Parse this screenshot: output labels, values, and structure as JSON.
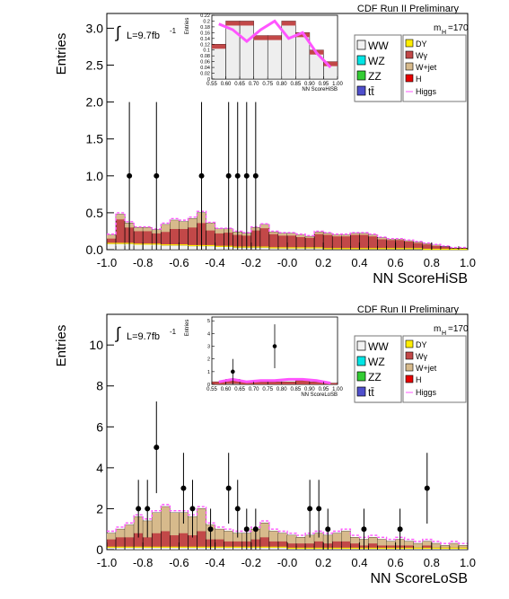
{
  "colors": {
    "WW": "#f2f2f2",
    "WZ": "#00e5e5",
    "ZZ": "#33cc33",
    "tt": "#4f4fcc",
    "DY": "#ffee00",
    "Wg": "#c24848",
    "Wjet": "#d7ba8c",
    "H": "#e60000",
    "Higgs": "#ff55ff",
    "points": "#000000"
  },
  "chart_data": [
    {
      "type": "bar",
      "title": "CDF Run II Preliminary",
      "xlabel": "NN ScoreHiSB",
      "ylabel": "Entries",
      "lumi_text": "L=9.7fb",
      "lumi_exp": "-1",
      "mass_label": "m",
      "mass_sub": "H",
      "mass_val": "=170",
      "xlim": [
        -1.0,
        1.0
      ],
      "ylim": [
        0,
        3.2
      ],
      "xticks": [
        "-1.0",
        "-0.8",
        "-0.6",
        "-0.4",
        "-0.2",
        "-0.0",
        "0.2",
        "0.4",
        "0.6",
        "0.8",
        "1.0"
      ],
      "yticks": [
        "0.0",
        "0.5",
        "1.0",
        "1.5",
        "2.0",
        "2.5",
        "3.0"
      ],
      "legend": [
        "WW",
        "WZ",
        "ZZ",
        "tt̄",
        "DY",
        "Wγ",
        "W+jet",
        "H",
        "Higgs"
      ],
      "bin_width": 0.05,
      "stack_total": [
        0.2,
        0.48,
        0.36,
        0.3,
        0.3,
        0.27,
        0.34,
        0.4,
        0.38,
        0.42,
        0.5,
        0.36,
        0.28,
        0.28,
        0.24,
        0.22,
        0.3,
        0.34,
        0.24,
        0.22,
        0.22,
        0.2,
        0.18,
        0.24,
        0.22,
        0.2,
        0.2,
        0.22,
        0.22,
        0.2,
        0.16,
        0.14,
        0.14,
        0.12,
        0.1,
        0.08,
        0.06,
        0.04,
        0.02,
        0.02
      ],
      "wjet": [
        0.05,
        0.07,
        0.06,
        0.05,
        0.05,
        0.05,
        0.1,
        0.12,
        0.1,
        0.12,
        0.14,
        0.1,
        0.06,
        0.05,
        0.04,
        0.03,
        0.04,
        0.05,
        0.03,
        0.03,
        0.03,
        0.03,
        0.02,
        0.03,
        0.02,
        0.02,
        0.02,
        0.02,
        0.02,
        0.02,
        0.02,
        0.01,
        0.01,
        0.01,
        0.01,
        0.01,
        0.01,
        0.0,
        0.0,
        0.0
      ],
      "ww": [
        0.08,
        0.08,
        0.08,
        0.07,
        0.07,
        0.07,
        0.06,
        0.06,
        0.06,
        0.05,
        0.05,
        0.05,
        0.04,
        0.04,
        0.03,
        0.03,
        0.03,
        0.03,
        0.02,
        0.02,
        0.02,
        0.02,
        0.02,
        0.02,
        0.01,
        0.01,
        0.01,
        0.01,
        0.01,
        0.01,
        0.01,
        0.01,
        0.01,
        0.01,
        0.01,
        0.0,
        0.0,
        0.0,
        0.0,
        0.0
      ],
      "higgs": [
        0.21,
        0.5,
        0.38,
        0.31,
        0.31,
        0.28,
        0.36,
        0.42,
        0.4,
        0.44,
        0.52,
        0.37,
        0.29,
        0.29,
        0.25,
        0.23,
        0.31,
        0.35,
        0.25,
        0.23,
        0.23,
        0.21,
        0.19,
        0.25,
        0.23,
        0.21,
        0.21,
        0.23,
        0.23,
        0.21,
        0.17,
        0.15,
        0.15,
        0.13,
        0.11,
        0.09,
        0.07,
        0.05,
        0.03,
        0.03
      ],
      "data_points": [
        {
          "x": -0.875,
          "y": 1,
          "err": 1.0
        },
        {
          "x": -0.725,
          "y": 1,
          "err": 1.0
        },
        {
          "x": -0.475,
          "y": 1,
          "err": 1.0
        },
        {
          "x": -0.325,
          "y": 1,
          "err": 1.0
        },
        {
          "x": -0.275,
          "y": 1,
          "err": 1.0
        },
        {
          "x": -0.225,
          "y": 1,
          "err": 1.0
        },
        {
          "x": -0.175,
          "y": 1,
          "err": 1.0
        }
      ],
      "inset": {
        "xlabel": "NN ScoreHiSB",
        "ylabel": "Entries",
        "xlim": [
          0.55,
          1.0
        ],
        "ylim": [
          0,
          0.22
        ],
        "xticks": [
          "0.55",
          "0.60",
          "0.65",
          "0.70",
          "0.75",
          "0.80",
          "0.85",
          "0.90",
          "0.95",
          "1.00"
        ],
        "yticks": [
          "0",
          "0.02",
          "0.04",
          "0.06",
          "0.08",
          "0.1",
          "0.12",
          "0.14",
          "0.16",
          "0.18",
          "0.2",
          "0.22"
        ],
        "stack_total": [
          0.12,
          0.2,
          0.2,
          0.15,
          0.15,
          0.2,
          0.16,
          0.1,
          0.06
        ],
        "higgs": [
          0.19,
          0.17,
          0.13,
          0.17,
          0.2,
          0.14,
          0.16,
          0.09,
          0.04
        ],
        "data_points": []
      }
    },
    {
      "type": "bar",
      "title": "CDF Run II Preliminary",
      "xlabel": "NN ScoreLoSB",
      "ylabel": "Entries",
      "lumi_text": "L=9.7fb",
      "lumi_exp": "-1",
      "mass_label": "m",
      "mass_sub": "H",
      "mass_val": "=170",
      "xlim": [
        -1.0,
        1.0
      ],
      "ylim": [
        0,
        11.5
      ],
      "xticks": [
        "-1.0",
        "-0.8",
        "-0.6",
        "-0.4",
        "-0.2",
        "-0.0",
        "0.2",
        "0.4",
        "0.6",
        "0.8",
        "1.0"
      ],
      "yticks": [
        "0",
        "2",
        "4",
        "6",
        "8",
        "10"
      ],
      "legend": [
        "WW",
        "WZ",
        "ZZ",
        "tt̄",
        "DY",
        "Wγ",
        "W+jet",
        "H",
        "Higgs"
      ],
      "bin_width": 0.05,
      "stack_total": [
        0.8,
        1.0,
        1.2,
        1.6,
        1.4,
        1.8,
        2.1,
        1.8,
        1.8,
        1.6,
        2.0,
        1.2,
        1.0,
        0.9,
        0.8,
        0.8,
        1.0,
        1.3,
        0.9,
        0.8,
        0.7,
        0.6,
        0.7,
        0.8,
        0.7,
        0.8,
        0.9,
        0.6,
        0.5,
        0.6,
        0.5,
        0.4,
        0.5,
        0.4,
        0.3,
        0.4,
        0.3,
        0.2,
        0.3,
        0.2
      ],
      "wjet": [
        0.3,
        0.4,
        0.6,
        0.8,
        0.8,
        1.0,
        1.2,
        1.1,
        1.0,
        0.9,
        1.1,
        0.7,
        0.5,
        0.5,
        0.4,
        0.4,
        0.5,
        0.7,
        0.5,
        0.4,
        0.4,
        0.3,
        0.4,
        0.4,
        0.4,
        0.4,
        0.5,
        0.3,
        0.3,
        0.3,
        0.3,
        0.2,
        0.3,
        0.2,
        0.2,
        0.2,
        0.2,
        0.1,
        0.2,
        0.1
      ],
      "ww": [
        0.1,
        0.1,
        0.1,
        0.1,
        0.1,
        0.1,
        0.1,
        0.1,
        0.1,
        0.1,
        0.1,
        0.1,
        0.1,
        0.1,
        0.1,
        0.1,
        0.1,
        0.1,
        0.1,
        0.1,
        0.05,
        0.05,
        0.05,
        0.05,
        0.05,
        0.05,
        0.05,
        0.05,
        0.05,
        0.05,
        0.05,
        0.05,
        0.05,
        0.05,
        0.05,
        0.05,
        0.05,
        0.05,
        0.05,
        0.05
      ],
      "higgs": [
        0.9,
        1.1,
        1.3,
        1.7,
        1.5,
        1.9,
        2.2,
        1.9,
        1.9,
        1.7,
        2.1,
        1.3,
        1.1,
        1.0,
        0.9,
        0.9,
        1.1,
        1.4,
        1.0,
        0.9,
        0.8,
        0.7,
        0.8,
        0.9,
        0.8,
        0.9,
        1.0,
        0.7,
        0.6,
        0.7,
        0.6,
        0.5,
        0.6,
        0.5,
        0.4,
        0.5,
        0.4,
        0.3,
        0.4,
        0.3
      ],
      "data_points": [
        {
          "x": -0.825,
          "y": 2,
          "err": 1.41
        },
        {
          "x": -0.775,
          "y": 2,
          "err": 1.41
        },
        {
          "x": -0.725,
          "y": 5,
          "err": 2.24
        },
        {
          "x": -0.575,
          "y": 3,
          "err": 1.73
        },
        {
          "x": -0.525,
          "y": 2,
          "err": 1.41
        },
        {
          "x": -0.425,
          "y": 1,
          "err": 1.0
        },
        {
          "x": -0.325,
          "y": 3,
          "err": 1.73
        },
        {
          "x": -0.275,
          "y": 2,
          "err": 1.41
        },
        {
          "x": -0.225,
          "y": 1,
          "err": 1.0
        },
        {
          "x": -0.175,
          "y": 1,
          "err": 1.0
        },
        {
          "x": 0.125,
          "y": 2,
          "err": 1.41
        },
        {
          "x": 0.175,
          "y": 2,
          "err": 1.41
        },
        {
          "x": 0.225,
          "y": 1,
          "err": 1.0
        },
        {
          "x": 0.425,
          "y": 1,
          "err": 1.0
        },
        {
          "x": 0.625,
          "y": 1,
          "err": 1.0
        },
        {
          "x": 0.775,
          "y": 3,
          "err": 1.73
        }
      ],
      "inset": {
        "xlabel": "NN ScoreLoSB",
        "ylabel": "Entries",
        "xlim": [
          0.55,
          1.0
        ],
        "ylim": [
          0,
          5.3
        ],
        "xticks": [
          "0.55",
          "0.60",
          "0.65",
          "0.70",
          "0.75",
          "0.80",
          "0.85",
          "0.90",
          "0.95",
          "1.00"
        ],
        "yticks": [
          "0",
          "1",
          "2",
          "3",
          "4",
          "5"
        ],
        "stack_total": [
          0.2,
          0.4,
          0.2,
          0.2,
          0.2,
          0.2,
          0.3,
          0.2,
          0.1
        ],
        "higgs": [
          0.2,
          0.4,
          0.2,
          0.3,
          0.3,
          0.4,
          0.4,
          0.3,
          0.1
        ],
        "data_points": [
          {
            "x": 0.625,
            "y": 1,
            "err": 1.0
          },
          {
            "x": 0.775,
            "y": 3,
            "err": 1.73
          }
        ]
      }
    }
  ]
}
